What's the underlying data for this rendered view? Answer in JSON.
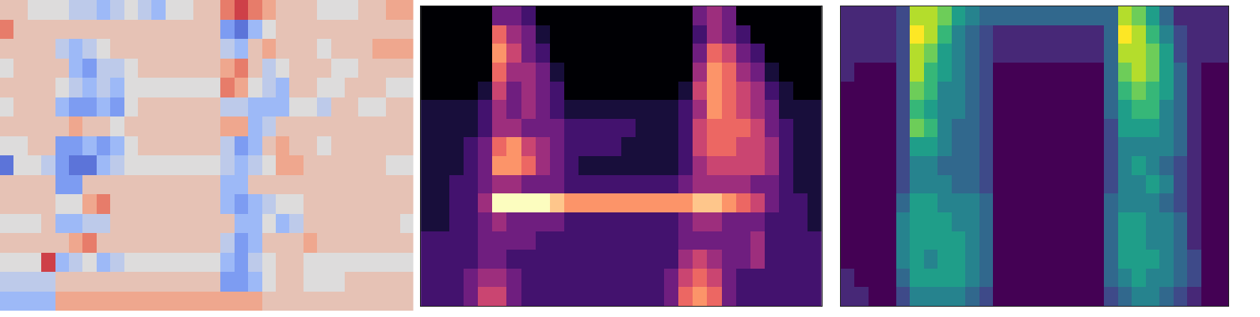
{
  "chart_data": [
    {
      "type": "heatmap",
      "color": "coolwarm",
      "tick_labels": false,
      "zlim": [
        -5,
        5
      ],
      "cells": [
        [
          1,
          1,
          0,
          0,
          0,
          -1,
          -1,
          -2,
          -1,
          0,
          -1,
          -2,
          0,
          0,
          1,
          1,
          3,
          4,
          3,
          2,
          1,
          1,
          1,
          0,
          0,
          0,
          1,
          1,
          2,
          2
        ],
        [
          3,
          1,
          1,
          1,
          1,
          1,
          1,
          1,
          1,
          1,
          1,
          1,
          1,
          1,
          1,
          1,
          -3,
          -4,
          -2,
          0,
          1,
          1,
          1,
          1,
          1,
          1,
          1,
          1,
          1,
          1
        ],
        [
          1,
          1,
          1,
          1,
          -1,
          -2,
          -1,
          0,
          1,
          1,
          1,
          1,
          1,
          1,
          1,
          1,
          -1,
          -2,
          1,
          2,
          1,
          1,
          1,
          0,
          1,
          1,
          1,
          2,
          2,
          2
        ],
        [
          0,
          1,
          1,
          1,
          1,
          -2,
          -3,
          -1,
          -1,
          0,
          1,
          1,
          1,
          1,
          1,
          1,
          2,
          3,
          1,
          -1,
          0,
          1,
          1,
          1,
          0,
          0,
          1,
          1,
          1,
          1
        ],
        [
          1,
          1,
          1,
          1,
          0,
          -1,
          -2,
          -1,
          -2,
          0,
          0,
          0,
          0,
          0,
          0,
          0,
          3,
          2,
          0,
          -1,
          -2,
          1,
          1,
          0,
          0,
          1,
          1,
          1,
          0,
          0
        ],
        [
          0,
          1,
          1,
          1,
          -2,
          -3,
          -3,
          -2,
          -3,
          0,
          1,
          1,
          1,
          1,
          1,
          1,
          -1,
          -1,
          -2,
          -2,
          -2,
          0,
          0,
          -1,
          1,
          1,
          0,
          0,
          1,
          1
        ],
        [
          1,
          1,
          1,
          1,
          1,
          2,
          1,
          1,
          0,
          1,
          1,
          1,
          1,
          1,
          1,
          1,
          2,
          2,
          -2,
          -1,
          1,
          1,
          1,
          1,
          1,
          1,
          1,
          1,
          1,
          1
        ],
        [
          0,
          0,
          1,
          1,
          -3,
          -3,
          -2,
          -3,
          -2,
          0,
          1,
          1,
          1,
          1,
          1,
          1,
          -1,
          -3,
          -2,
          1,
          2,
          1,
          1,
          0,
          1,
          1,
          1,
          1,
          1,
          1
        ],
        [
          -4,
          0,
          0,
          -1,
          -3,
          -4,
          -4,
          -2,
          -1,
          0,
          0,
          0,
          0,
          0,
          0,
          0,
          -1,
          -2,
          -1,
          0,
          2,
          2,
          1,
          1,
          1,
          1,
          1,
          1,
          0,
          0
        ],
        [
          1,
          1,
          1,
          1,
          -3,
          -3,
          1,
          1,
          1,
          1,
          1,
          1,
          1,
          1,
          1,
          1,
          -2,
          -2,
          1,
          1,
          1,
          1,
          1,
          1,
          1,
          1,
          1,
          1,
          1,
          1
        ],
        [
          1,
          1,
          1,
          1,
          0,
          0,
          2,
          3,
          1,
          1,
          1,
          1,
          1,
          1,
          1,
          1,
          -2,
          -3,
          -2,
          -1,
          0,
          0,
          1,
          1,
          1,
          1,
          1,
          1,
          1,
          1
        ],
        [
          0,
          0,
          0,
          1,
          -2,
          -2,
          -1,
          -1,
          1,
          1,
          1,
          1,
          1,
          1,
          1,
          1,
          1,
          -2,
          -2,
          0,
          -2,
          -1,
          1,
          1,
          1,
          1,
          1,
          1,
          1,
          0
        ],
        [
          1,
          1,
          1,
          1,
          1,
          2,
          3,
          1,
          1,
          1,
          1,
          1,
          1,
          1,
          1,
          1,
          -1,
          -3,
          -2,
          1,
          1,
          1,
          2,
          1,
          1,
          1,
          1,
          1,
          1,
          1
        ],
        [
          0,
          0,
          0,
          4,
          -2,
          -1,
          0,
          -2,
          -1,
          0,
          0,
          0,
          0,
          0,
          0,
          0,
          -2,
          -3,
          -1,
          0,
          1,
          1,
          0,
          0,
          0,
          0,
          0,
          0,
          0,
          0
        ],
        [
          -1,
          -1,
          -1,
          -1,
          1,
          1,
          1,
          1,
          1,
          1,
          1,
          1,
          1,
          1,
          1,
          1,
          -3,
          -3,
          -2,
          0,
          1,
          1,
          0,
          0,
          0,
          1,
          1,
          1,
          1,
          1
        ],
        [
          -2,
          -2,
          -2,
          -2,
          2,
          2,
          2,
          2,
          2,
          2,
          2,
          2,
          2,
          2,
          2,
          2,
          2,
          2,
          2,
          1,
          1,
          1,
          1,
          1,
          1,
          1,
          1,
          1,
          1,
          1
        ]
      ]
    },
    {
      "type": "heatmap",
      "color": "magma",
      "tick_labels": false,
      "zlim": [
        0,
        9
      ],
      "cells": [
        [
          0,
          0,
          0,
          0,
          0,
          3,
          3,
          2,
          0,
          0,
          0,
          0,
          0,
          0,
          0,
          0,
          0,
          0,
          0,
          3,
          4,
          3,
          0,
          0,
          0,
          0,
          0,
          0
        ],
        [
          0,
          0,
          0,
          0,
          0,
          6,
          4,
          3,
          1,
          0,
          0,
          0,
          0,
          0,
          0,
          0,
          0,
          0,
          0,
          2,
          4,
          3,
          2,
          0,
          0,
          0,
          0,
          0
        ],
        [
          0,
          0,
          0,
          0,
          0,
          7,
          5,
          3,
          2,
          0,
          0,
          0,
          0,
          0,
          0,
          0,
          0,
          0,
          0,
          3,
          6,
          5,
          3,
          2,
          0,
          0,
          0,
          0
        ],
        [
          0,
          0,
          0,
          0,
          0,
          6,
          4,
          4,
          3,
          1,
          0,
          0,
          0,
          0,
          0,
          0,
          0,
          0,
          0,
          4,
          7,
          6,
          4,
          3,
          1,
          0,
          0,
          0
        ],
        [
          0,
          0,
          0,
          0,
          1,
          5,
          3,
          4,
          3,
          2,
          0,
          0,
          0,
          0,
          0,
          0,
          0,
          0,
          1,
          5,
          7,
          6,
          5,
          4,
          2,
          1,
          0,
          0
        ],
        [
          1,
          1,
          1,
          1,
          2,
          4,
          3,
          4,
          3,
          2,
          1,
          1,
          1,
          1,
          1,
          1,
          1,
          1,
          2,
          4,
          7,
          6,
          5,
          4,
          3,
          1,
          1,
          1
        ],
        [
          1,
          1,
          1,
          1,
          2,
          4,
          4,
          3,
          3,
          3,
          2,
          2,
          2,
          2,
          2,
          1,
          1,
          1,
          2,
          5,
          6,
          6,
          6,
          5,
          3,
          2,
          1,
          1
        ],
        [
          1,
          1,
          1,
          2,
          3,
          6,
          7,
          5,
          4,
          3,
          2,
          2,
          2,
          2,
          1,
          1,
          1,
          1,
          2,
          5,
          6,
          6,
          5,
          5,
          4,
          2,
          1,
          1
        ],
        [
          1,
          1,
          1,
          2,
          3,
          7,
          7,
          6,
          4,
          3,
          2,
          1,
          1,
          1,
          1,
          1,
          1,
          1,
          2,
          4,
          5,
          5,
          5,
          5,
          4,
          2,
          1,
          1
        ],
        [
          1,
          1,
          2,
          2,
          3,
          4,
          4,
          3,
          3,
          3,
          2,
          2,
          2,
          2,
          2,
          2,
          2,
          2,
          3,
          4,
          4,
          4,
          4,
          3,
          3,
          2,
          1,
          1
        ],
        [
          1,
          1,
          2,
          2,
          4,
          9,
          9,
          9,
          9,
          8,
          7,
          7,
          7,
          7,
          7,
          7,
          7,
          7,
          7,
          8,
          8,
          7,
          6,
          5,
          3,
          2,
          2,
          1
        ],
        [
          1,
          1,
          2,
          2,
          3,
          4,
          3,
          3,
          3,
          3,
          2,
          2,
          2,
          2,
          2,
          2,
          2,
          2,
          3,
          4,
          4,
          3,
          3,
          3,
          2,
          2,
          2,
          1
        ],
        [
          2,
          2,
          2,
          2,
          3,
          3,
          3,
          3,
          2,
          2,
          2,
          2,
          2,
          2,
          2,
          2,
          2,
          2,
          3,
          3,
          3,
          3,
          3,
          4,
          2,
          2,
          2,
          2
        ],
        [
          2,
          2,
          2,
          2,
          3,
          3,
          2,
          2,
          2,
          2,
          2,
          2,
          2,
          2,
          2,
          2,
          2,
          2,
          4,
          5,
          4,
          3,
          3,
          4,
          2,
          2,
          2,
          2
        ],
        [
          2,
          2,
          2,
          3,
          4,
          4,
          3,
          2,
          2,
          2,
          2,
          2,
          2,
          2,
          2,
          2,
          2,
          3,
          5,
          6,
          5,
          3,
          2,
          2,
          2,
          2,
          2,
          2
        ],
        [
          2,
          2,
          2,
          3,
          5,
          5,
          3,
          2,
          2,
          2,
          2,
          2,
          2,
          2,
          2,
          2,
          2,
          3,
          6,
          7,
          6,
          3,
          2,
          2,
          2,
          2,
          2,
          2
        ]
      ]
    },
    {
      "type": "heatmap",
      "color": "viridis",
      "tick_labels": false,
      "zlim": [
        0,
        9
      ],
      "cells": [
        [
          1,
          1,
          1,
          1,
          2,
          8,
          8,
          7,
          5,
          4,
          3,
          3,
          3,
          3,
          3,
          3,
          3,
          3,
          3,
          3,
          8,
          7,
          5,
          3,
          1,
          1,
          1,
          1
        ],
        [
          1,
          1,
          1,
          1,
          2,
          9,
          8,
          6,
          4,
          3,
          2,
          1,
          1,
          1,
          1,
          1,
          1,
          1,
          1,
          3,
          9,
          8,
          6,
          4,
          2,
          1,
          1,
          1
        ],
        [
          1,
          1,
          1,
          1,
          2,
          8,
          7,
          5,
          4,
          3,
          2,
          1,
          1,
          1,
          1,
          1,
          1,
          1,
          1,
          3,
          8,
          8,
          7,
          5,
          2,
          1,
          1,
          1
        ],
        [
          1,
          0,
          0,
          0,
          2,
          8,
          6,
          5,
          4,
          3,
          2,
          0,
          0,
          0,
          0,
          0,
          0,
          0,
          0,
          3,
          7,
          8,
          7,
          5,
          3,
          1,
          0,
          0
        ],
        [
          0,
          0,
          0,
          0,
          2,
          7,
          6,
          4,
          4,
          3,
          2,
          0,
          0,
          0,
          0,
          0,
          0,
          0,
          0,
          3,
          6,
          7,
          6,
          5,
          3,
          1,
          0,
          0
        ],
        [
          0,
          0,
          0,
          0,
          2,
          6,
          5,
          4,
          4,
          3,
          2,
          0,
          0,
          0,
          0,
          0,
          0,
          0,
          0,
          3,
          5,
          6,
          6,
          4,
          3,
          1,
          0,
          0
        ],
        [
          0,
          0,
          0,
          0,
          2,
          7,
          6,
          4,
          3,
          3,
          2,
          0,
          0,
          0,
          0,
          0,
          0,
          0,
          0,
          2,
          5,
          5,
          5,
          4,
          3,
          1,
          0,
          0
        ],
        [
          0,
          0,
          0,
          0,
          2,
          5,
          5,
          4,
          3,
          3,
          2,
          0,
          0,
          0,
          0,
          0,
          0,
          0,
          0,
          2,
          4,
          4,
          4,
          4,
          3,
          1,
          0,
          0
        ],
        [
          0,
          0,
          0,
          0,
          2,
          4,
          4,
          3,
          3,
          3,
          2,
          0,
          0,
          0,
          0,
          0,
          0,
          0,
          0,
          2,
          4,
          5,
          4,
          3,
          2,
          1,
          0,
          0
        ],
        [
          0,
          0,
          0,
          0,
          2,
          4,
          4,
          4,
          3,
          3,
          2,
          0,
          0,
          0,
          0,
          0,
          0,
          0,
          0,
          2,
          4,
          4,
          5,
          4,
          2,
          1,
          0,
          0
        ],
        [
          0,
          0,
          0,
          0,
          3,
          5,
          5,
          4,
          4,
          4,
          3,
          0,
          0,
          0,
          0,
          0,
          0,
          0,
          0,
          3,
          4,
          4,
          4,
          3,
          2,
          1,
          0,
          0
        ],
        [
          0,
          0,
          0,
          0,
          4,
          5,
          5,
          5,
          4,
          4,
          3,
          0,
          0,
          0,
          0,
          0,
          0,
          0,
          0,
          3,
          5,
          5,
          4,
          4,
          3,
          1,
          0,
          0
        ],
        [
          0,
          0,
          0,
          0,
          4,
          5,
          5,
          5,
          5,
          4,
          3,
          0,
          0,
          0,
          0,
          0,
          0,
          0,
          0,
          3,
          5,
          5,
          4,
          4,
          3,
          1,
          0,
          0
        ],
        [
          0,
          0,
          0,
          0,
          4,
          5,
          4,
          5,
          5,
          4,
          3,
          0,
          0,
          0,
          0,
          0,
          0,
          0,
          0,
          3,
          5,
          5,
          5,
          4,
          3,
          2,
          0,
          0
        ],
        [
          1,
          0,
          0,
          0,
          3,
          5,
          5,
          5,
          5,
          4,
          3,
          0,
          0,
          0,
          0,
          0,
          0,
          0,
          0,
          3,
          4,
          5,
          4,
          4,
          3,
          2,
          0,
          0
        ],
        [
          1,
          1,
          0,
          0,
          2,
          4,
          4,
          4,
          4,
          3,
          2,
          0,
          0,
          0,
          0,
          0,
          0,
          0,
          0,
          2,
          3,
          4,
          4,
          3,
          2,
          1,
          0,
          0
        ]
      ]
    }
  ]
}
